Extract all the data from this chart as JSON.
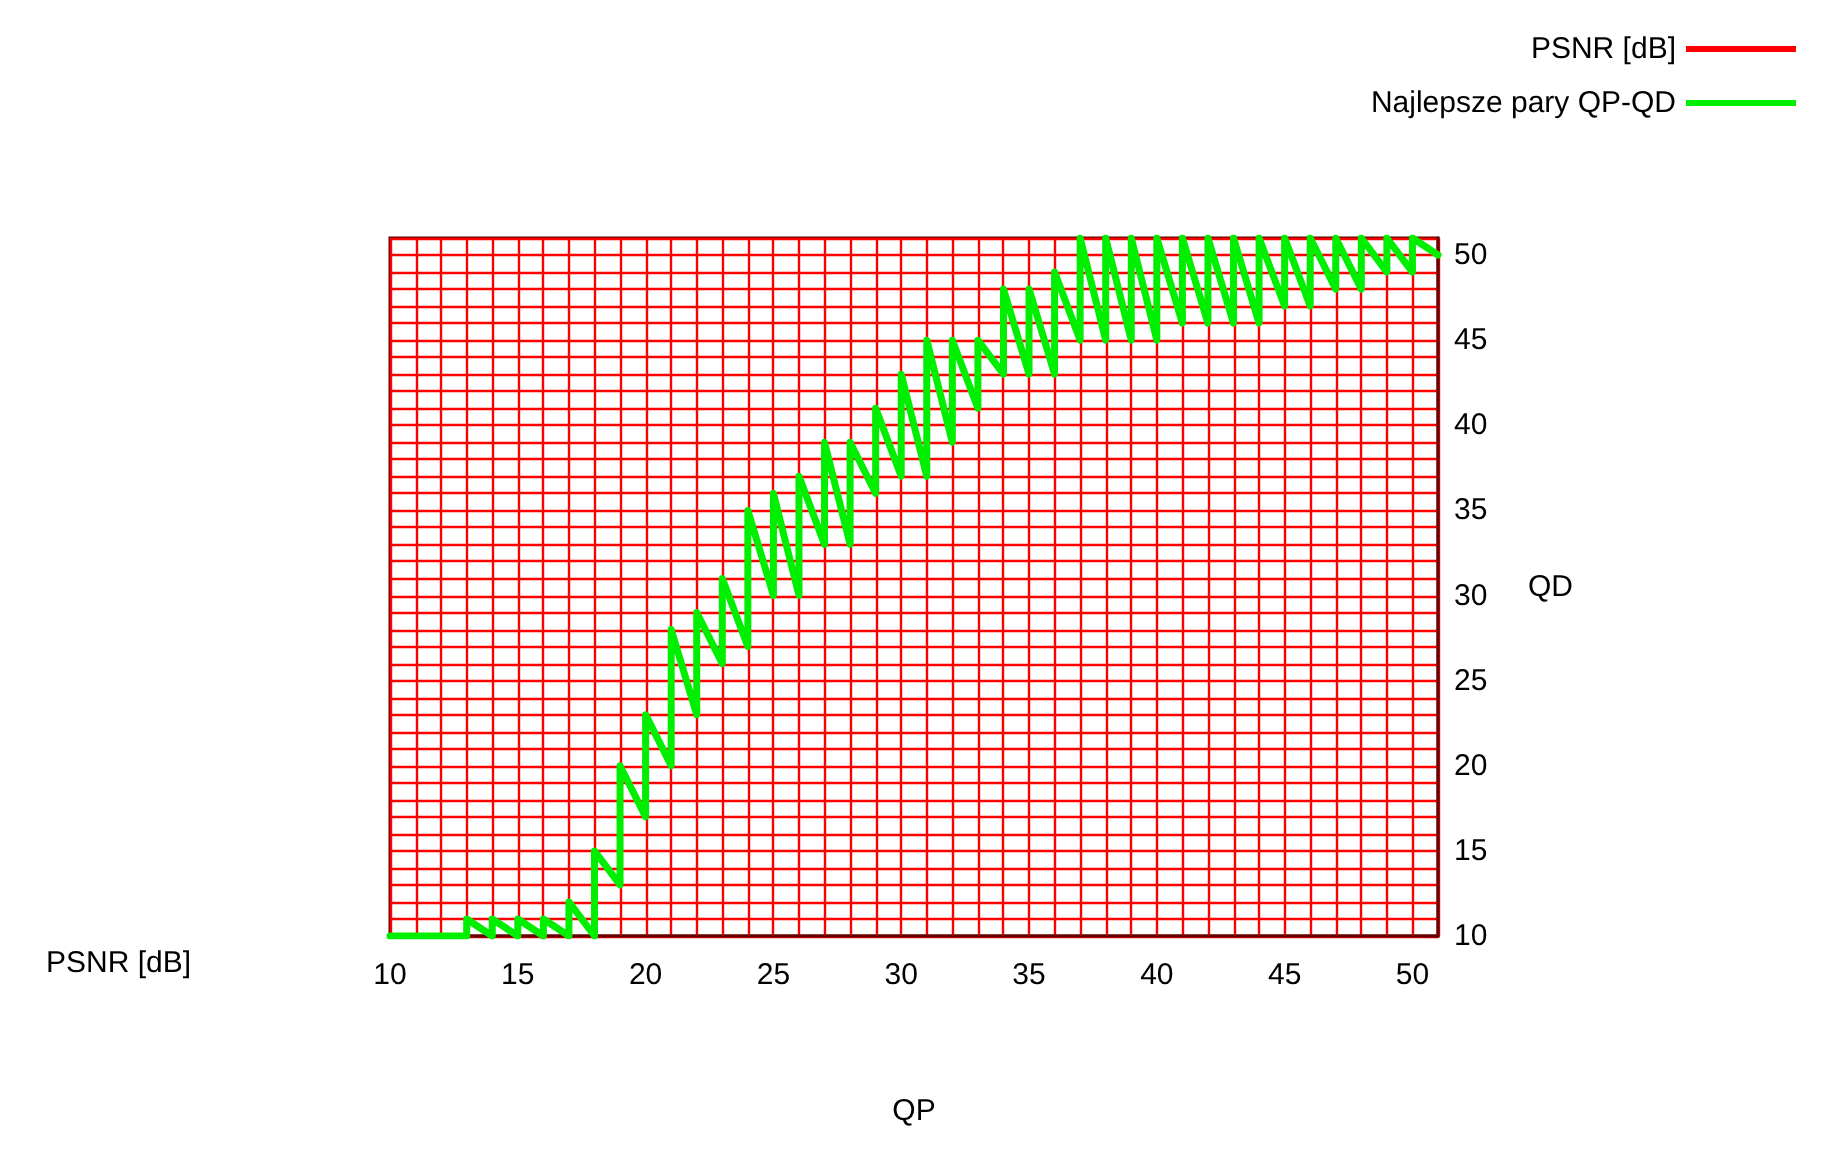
{
  "chart_data": {
    "type": "line",
    "xlabel": "QP",
    "ylabel": "QD",
    "annotations": [
      "PSNR [dB]"
    ],
    "xlim": [
      10,
      51
    ],
    "xticks": [
      10,
      {
        "value": 11,
        "label": null
      },
      {
        "value": 12,
        "label": null
      },
      {
        "value": 13,
        "label": null
      },
      {
        "value": 14,
        "label": null
      },
      15,
      {
        "value": 16,
        "label": null
      },
      {
        "value": 17,
        "label": null
      },
      {
        "value": 18,
        "label": null
      },
      {
        "value": 19,
        "label": null
      },
      20,
      {
        "value": 21,
        "label": null
      },
      {
        "value": 22,
        "label": null
      },
      {
        "value": 23,
        "label": null
      },
      {
        "value": 24,
        "label": null
      },
      25,
      {
        "value": 26,
        "label": null
      },
      {
        "value": 27,
        "label": null
      },
      {
        "value": 28,
        "label": null
      },
      {
        "value": 29,
        "label": null
      },
      30,
      {
        "value": 31,
        "label": null
      },
      {
        "value": 32,
        "label": null
      },
      {
        "value": 33,
        "label": null
      },
      {
        "value": 34,
        "label": null
      },
      35,
      {
        "value": 36,
        "label": null
      },
      {
        "value": 37,
        "label": null
      },
      {
        "value": 38,
        "label": null
      },
      {
        "value": 39,
        "label": null
      },
      40,
      {
        "value": 41,
        "label": null
      },
      {
        "value": 42,
        "label": null
      },
      {
        "value": 43,
        "label": null
      },
      {
        "value": 44,
        "label": null
      },
      45,
      {
        "value": 46,
        "label": null
      },
      {
        "value": 47,
        "label": null
      },
      {
        "value": 48,
        "label": null
      },
      {
        "value": 49,
        "label": null
      },
      50,
      {
        "value": 51,
        "label": null
      }
    ],
    "ylim": [
      10,
      51
    ],
    "yticks": [
      10,
      {
        "value": 11,
        "label": null
      },
      {
        "value": 12,
        "label": null
      },
      {
        "value": 13,
        "label": null
      },
      {
        "value": 14,
        "label": null
      },
      15,
      {
        "value": 16,
        "label": null
      },
      {
        "value": 17,
        "label": null
      },
      {
        "value": 18,
        "label": null
      },
      {
        "value": 19,
        "label": null
      },
      20,
      {
        "value": 21,
        "label": null
      },
      {
        "value": 22,
        "label": null
      },
      {
        "value": 23,
        "label": null
      },
      {
        "value": 24,
        "label": null
      },
      25,
      {
        "value": 26,
        "label": null
      },
      {
        "value": 27,
        "label": null
      },
      {
        "value": 28,
        "label": null
      },
      {
        "value": 29,
        "label": null
      },
      30,
      {
        "value": 31,
        "label": null
      },
      {
        "value": 32,
        "label": null
      },
      {
        "value": 33,
        "label": null
      },
      {
        "value": 34,
        "label": null
      },
      35,
      {
        "value": 36,
        "label": null
      },
      {
        "value": 37,
        "label": null
      },
      {
        "value": 38,
        "label": null
      },
      {
        "value": 39,
        "label": null
      },
      40,
      {
        "value": 41,
        "label": null
      },
      {
        "value": 42,
        "label": null
      },
      {
        "value": 43,
        "label": null
      },
      {
        "value": 44,
        "label": null
      },
      45,
      {
        "value": 46,
        "label": null
      },
      {
        "value": 47,
        "label": null
      },
      {
        "value": 48,
        "label": null
      },
      {
        "value": 49,
        "label": null
      },
      50,
      {
        "value": 51,
        "label": null
      }
    ],
    "grid": true,
    "legend": "top right",
    "marker": "none",
    "line_style": "solid",
    "series": [
      {
        "name": "PSNR [dB]",
        "color": "#ff0000"
      },
      {
        "name": "Najlepsze pary QP-QD",
        "color": "#00ee00",
        "x": [
          10,
          10,
          11,
          11,
          12,
          12,
          13,
          13,
          14,
          14,
          15,
          15,
          16,
          16,
          17,
          17,
          18,
          18,
          19,
          19,
          20,
          20,
          21,
          21,
          22,
          22,
          23,
          23,
          24,
          24,
          25,
          25,
          26,
          26,
          27,
          27,
          28,
          28,
          29,
          29,
          30,
          30,
          31,
          31,
          32,
          32,
          33,
          33,
          34,
          34,
          35,
          35,
          36,
          36,
          37,
          37,
          38,
          38,
          39,
          39,
          40,
          40,
          41,
          41,
          42,
          42,
          43,
          43,
          44,
          44,
          45,
          45,
          46,
          46,
          47,
          47,
          48,
          48,
          49,
          49,
          50,
          50,
          51
        ],
        "values": [
          10,
          10,
          10,
          10,
          10,
          10,
          10,
          11,
          10,
          11,
          10,
          11,
          10,
          11,
          10,
          12,
          10,
          15,
          13,
          20,
          17,
          23,
          20,
          28,
          23,
          29,
          26,
          31,
          27,
          35,
          30,
          36,
          30,
          37,
          33,
          39,
          33,
          39,
          36,
          41,
          37,
          43,
          37,
          45,
          39,
          45,
          41,
          45,
          43,
          48,
          43,
          48,
          43,
          49,
          45,
          51,
          45,
          51,
          45,
          51,
          45,
          51,
          46,
          51,
          46,
          51,
          46,
          51,
          46,
          51,
          47,
          51,
          47,
          51,
          48,
          51,
          48,
          51,
          49,
          51,
          49,
          51,
          50
        ]
      }
    ]
  }
}
